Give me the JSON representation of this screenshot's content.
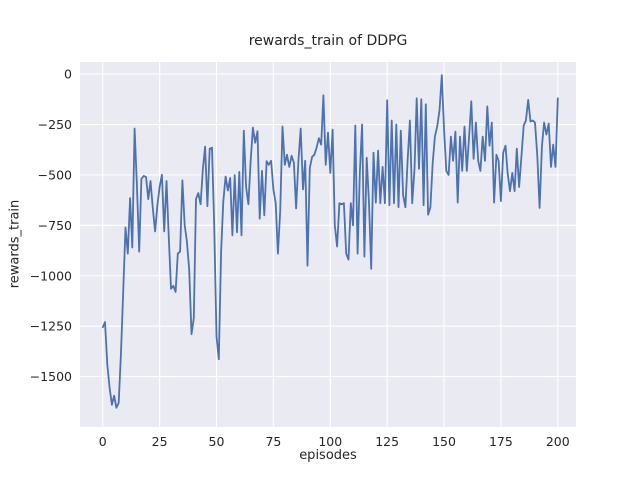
{
  "colors": {
    "figure_bg": "#ffffff",
    "axes_bg": "#eaeaf2",
    "grid": "#ffffff",
    "line": "#4c72b0",
    "text": "#262626"
  },
  "chart_data": {
    "type": "line",
    "title": "rewards_train of DDPG",
    "xlabel": "episodes",
    "ylabel": "rewards_train",
    "x_ticks": [
      0,
      25,
      50,
      75,
      100,
      125,
      150,
      175,
      200
    ],
    "y_ticks": [
      0,
      -250,
      -500,
      -750,
      -1000,
      -1250,
      -1500
    ],
    "xlim": [
      -10,
      208
    ],
    "ylim": [
      -1750,
      60
    ],
    "grid": true,
    "legend": false,
    "series": [
      {
        "name": "rewards_train",
        "x_start": 0,
        "x_step": 1,
        "values": [
          -1255,
          -1230,
          -1440,
          -1555,
          -1640,
          -1595,
          -1655,
          -1630,
          -1380,
          -1080,
          -760,
          -890,
          -615,
          -860,
          -270,
          -550,
          -880,
          -520,
          -505,
          -510,
          -620,
          -530,
          -665,
          -780,
          -650,
          -560,
          -500,
          -780,
          -530,
          -800,
          -1065,
          -1050,
          -1080,
          -890,
          -880,
          -527,
          -750,
          -830,
          -970,
          -1290,
          -1210,
          -620,
          -590,
          -645,
          -470,
          -360,
          -655,
          -370,
          -365,
          -750,
          -1300,
          -1414,
          -880,
          -632,
          -508,
          -577,
          -515,
          -800,
          -501,
          -785,
          -485,
          -800,
          -280,
          -560,
          -645,
          -435,
          -265,
          -340,
          -283,
          -717,
          -480,
          -700,
          -432,
          -450,
          -430,
          -572,
          -640,
          -890,
          -680,
          -260,
          -450,
          -400,
          -460,
          -405,
          -440,
          -666,
          -432,
          -270,
          -572,
          -430,
          -950,
          -466,
          -410,
          -400,
          -365,
          -318,
          -350,
          -105,
          -450,
          -290,
          -490,
          -275,
          -750,
          -855,
          -640,
          -645,
          -640,
          -890,
          -920,
          -640,
          -750,
          -255,
          -890,
          -480,
          -250,
          -905,
          -415,
          -640,
          -966,
          -390,
          -637,
          -380,
          -640,
          -460,
          -640,
          -130,
          -650,
          -230,
          -640,
          -250,
          -660,
          -280,
          -600,
          -660,
          -430,
          -230,
          -640,
          -470,
          -120,
          -470,
          -125,
          -650,
          -150,
          -697,
          -660,
          -440,
          -310,
          -260,
          -180,
          -5,
          -270,
          -480,
          -500,
          -310,
          -430,
          -285,
          -637,
          -310,
          -480,
          -260,
          -480,
          -310,
          -135,
          -420,
          -240,
          -430,
          -480,
          -310,
          -430,
          -160,
          -355,
          -240,
          -637,
          -400,
          -430,
          -630,
          -390,
          -355,
          -495,
          -580,
          -490,
          -580,
          -370,
          -560,
          -410,
          -255,
          -230,
          -128,
          -235,
          -230,
          -240,
          -405,
          -664,
          -360,
          -240,
          -300,
          -245,
          -460,
          -350,
          -460,
          -120
        ]
      }
    ]
  }
}
